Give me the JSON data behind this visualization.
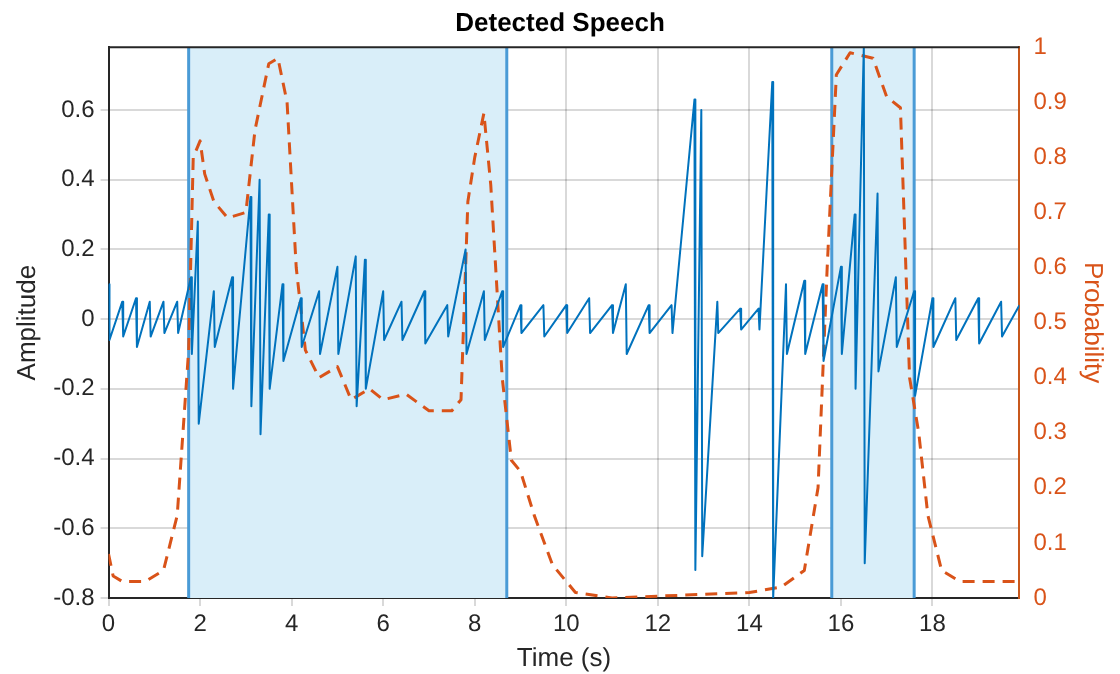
{
  "chart_data": {
    "type": "line",
    "title": "Detected Speech",
    "xlabel": "Time (s)",
    "ylabel": "Amplitude",
    "y2label": "Probability",
    "xlim": [
      0,
      19.9
    ],
    "xticks": [
      0,
      2,
      4,
      6,
      8,
      10,
      12,
      14,
      16,
      18
    ],
    "ylim": [
      -0.8,
      0.78
    ],
    "yticks": [
      -0.8,
      -0.6,
      -0.4,
      -0.2,
      0,
      0.2,
      0.4,
      0.6
    ],
    "y2lim": [
      0,
      1
    ],
    "y2ticks": [
      0,
      0.1,
      0.2,
      0.3,
      0.4,
      0.5,
      0.6,
      0.7,
      0.8,
      0.9,
      1
    ],
    "grid": true,
    "legend": false,
    "marker": "none",
    "bands": [
      {
        "axis": "x",
        "from": 1.75,
        "to": 8.7,
        "color": "#d9eef9"
      },
      {
        "axis": "x",
        "from": 15.8,
        "to": 17.6,
        "color": "#d9eef9"
      }
    ],
    "ref_lines": [
      {
        "axis": "x",
        "value": 1.75,
        "color": "#4a9bd6"
      },
      {
        "axis": "x",
        "value": 8.7,
        "color": "#4a9bd6"
      },
      {
        "axis": "x",
        "value": 15.8,
        "color": "#4a9bd6"
      },
      {
        "axis": "x",
        "value": 17.6,
        "color": "#4a9bd6"
      }
    ],
    "series": [
      {
        "color": "#0072bd",
        "line_style": "solid",
        "x": [
          0,
          0.02,
          0.3,
          0.32,
          0.6,
          0.62,
          0.9,
          0.92,
          1.2,
          1.22,
          1.5,
          1.52,
          1.8,
          1.82,
          1.95,
          1.97,
          2.3,
          2.32,
          2.7,
          2.72,
          3.1,
          3.12,
          3.3,
          3.32,
          3.5,
          3.52,
          3.8,
          3.82,
          4.2,
          4.22,
          4.6,
          4.62,
          5.0,
          5.02,
          5.4,
          5.42,
          5.6,
          5.62,
          6.0,
          6.02,
          6.4,
          6.42,
          6.9,
          6.92,
          7.4,
          7.42,
          7.8,
          7.82,
          8.2,
          8.22,
          8.6,
          8.62,
          9.0,
          9.02,
          9.5,
          9.52,
          10.0,
          10.02,
          10.5,
          10.52,
          11.0,
          11.02,
          11.3,
          11.32,
          11.8,
          11.82,
          12.3,
          12.32,
          12.8,
          12.82,
          12.95,
          12.97,
          13.3,
          13.32,
          13.8,
          13.82,
          14.2,
          14.22,
          14.5,
          14.52,
          14.8,
          14.82,
          15.2,
          15.22,
          15.6,
          15.62,
          16.0,
          16.02,
          16.3,
          16.32,
          16.5,
          16.52,
          16.8,
          16.82,
          17.2,
          17.22,
          17.6,
          17.62,
          18.0,
          18.02,
          18.5,
          18.52,
          19.0,
          19.02,
          19.5,
          19.52,
          19.9
        ],
        "values": [
          0.1,
          -0.06,
          0.05,
          -0.05,
          0.06,
          -0.08,
          0.05,
          -0.05,
          0.05,
          -0.04,
          0.05,
          -0.04,
          0.12,
          -0.1,
          0.28,
          -0.3,
          0.08,
          -0.08,
          0.12,
          -0.2,
          0.35,
          -0.25,
          0.4,
          -0.33,
          0.3,
          -0.2,
          0.1,
          -0.12,
          0.06,
          -0.08,
          0.08,
          -0.1,
          0.15,
          -0.1,
          0.18,
          -0.25,
          0.17,
          -0.2,
          0.08,
          -0.06,
          0.05,
          -0.06,
          0.08,
          -0.07,
          0.04,
          -0.05,
          0.2,
          -0.1,
          0.08,
          -0.06,
          0.08,
          -0.08,
          0.04,
          -0.04,
          0.04,
          -0.05,
          0.04,
          -0.04,
          0.06,
          -0.04,
          0.04,
          -0.04,
          0.1,
          -0.1,
          0.04,
          -0.04,
          0.04,
          -0.04,
          0.63,
          -0.72,
          0.6,
          -0.68,
          0.05,
          -0.04,
          0.03,
          -0.03,
          0.03,
          -0.03,
          0.68,
          -0.8,
          0.1,
          -0.1,
          0.11,
          -0.1,
          0.1,
          -0.12,
          0.15,
          -0.1,
          0.3,
          -0.2,
          0.78,
          -0.7,
          0.36,
          -0.15,
          0.12,
          -0.08,
          0.08,
          -0.22,
          0.06,
          -0.08,
          0.06,
          -0.06,
          0.06,
          -0.07,
          0.05,
          -0.05,
          0.04
        ]
      },
      {
        "color": "#d95319",
        "line_style": "dashed",
        "axis": "y2",
        "x": [
          0,
          0.1,
          0.3,
          0.8,
          1.2,
          1.5,
          1.75,
          1.85,
          2.0,
          2.1,
          2.3,
          2.6,
          3.0,
          3.2,
          3.5,
          3.7,
          3.9,
          4.1,
          4.3,
          4.6,
          5.0,
          5.3,
          5.7,
          6.0,
          6.5,
          7.0,
          7.5,
          7.7,
          7.85,
          8.0,
          8.2,
          8.35,
          8.6,
          8.8,
          9.0,
          9.3,
          9.7,
          10.2,
          11,
          14.0,
          14.7,
          15.2,
          15.5,
          15.7,
          15.9,
          16.2,
          16.7,
          17.0,
          17.3,
          17.5,
          17.7,
          17.9,
          18.2,
          18.6,
          19.9
        ],
        "values": [
          0.08,
          0.04,
          0.03,
          0.03,
          0.05,
          0.15,
          0.45,
          0.8,
          0.83,
          0.77,
          0.72,
          0.69,
          0.7,
          0.85,
          0.97,
          0.98,
          0.9,
          0.6,
          0.45,
          0.4,
          0.42,
          0.36,
          0.38,
          0.36,
          0.37,
          0.34,
          0.34,
          0.36,
          0.72,
          0.8,
          0.88,
          0.75,
          0.4,
          0.25,
          0.23,
          0.15,
          0.06,
          0.01,
          0,
          0.01,
          0.02,
          0.05,
          0.2,
          0.6,
          0.95,
          0.99,
          0.98,
          0.91,
          0.89,
          0.4,
          0.3,
          0.15,
          0.05,
          0.03,
          0.03
        ]
      }
    ]
  }
}
